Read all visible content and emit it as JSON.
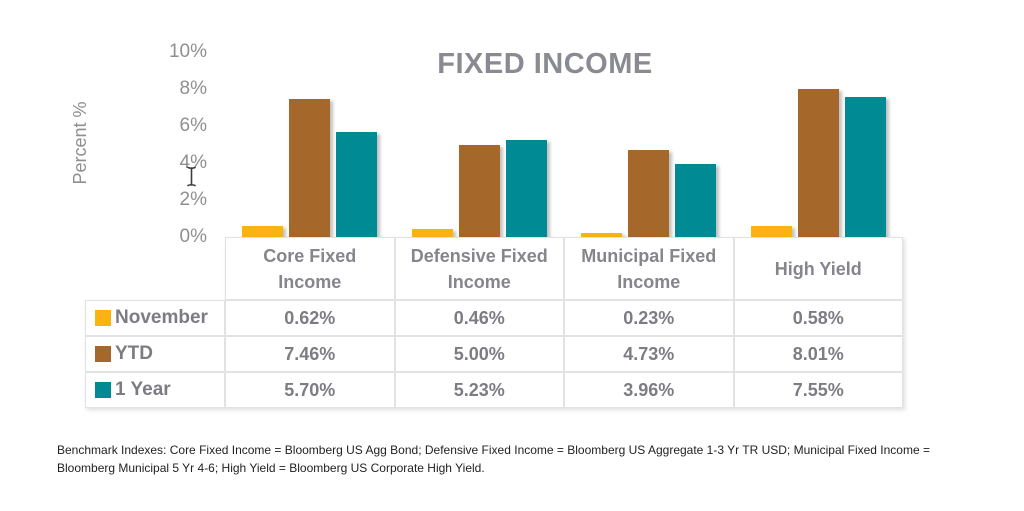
{
  "chart_data": {
    "type": "bar",
    "title": "FIXED INCOME",
    "ylabel": "Percent %",
    "categories": [
      "Core Fixed Income",
      "Defensive Fixed Income",
      "Municipal Fixed Income",
      "High Yield"
    ],
    "series": [
      {
        "name": "November",
        "color": "#FBB313",
        "values": [
          0.62,
          0.46,
          0.23,
          0.58
        ]
      },
      {
        "name": "YTD",
        "color": "#A6672B",
        "values": [
          7.46,
          5.0,
          4.73,
          8.01
        ]
      },
      {
        "name": "1 Year",
        "color": "#008B94",
        "values": [
          5.7,
          5.23,
          3.96,
          7.55
        ]
      }
    ],
    "ylim": [
      0,
      10
    ],
    "yticks": [
      "10%",
      "8%",
      "6%",
      "4%",
      "2%",
      "0%"
    ],
    "grid": false,
    "legend_position": "table-left-column"
  },
  "table": {
    "column_headers": [
      "Core Fixed Income",
      "Defensive Fixed Income",
      "Municipal Fixed Income",
      "High Yield"
    ],
    "rows": [
      {
        "label": "November",
        "values": [
          "0.62%",
          "0.46%",
          "0.23%",
          "0.58%"
        ]
      },
      {
        "label": "YTD",
        "values": [
          "7.46%",
          "5.00%",
          "4.73%",
          "8.01%"
        ]
      },
      {
        "label": "1 Year",
        "values": [
          "5.70%",
          "5.23%",
          "3.96%",
          "7.55%"
        ]
      }
    ]
  },
  "cursor": {
    "type": "text-ibeam"
  },
  "footnote": "Benchmark Indexes: Core Fixed Income = Bloomberg US Agg Bond; Defensive Fixed Income = Bloomberg US Aggregate 1-3 Yr TR USD; Municipal Fixed Income = Bloomberg Municipal 5 Yr 4-6; High Yield = Bloomberg US Corporate High Yield."
}
